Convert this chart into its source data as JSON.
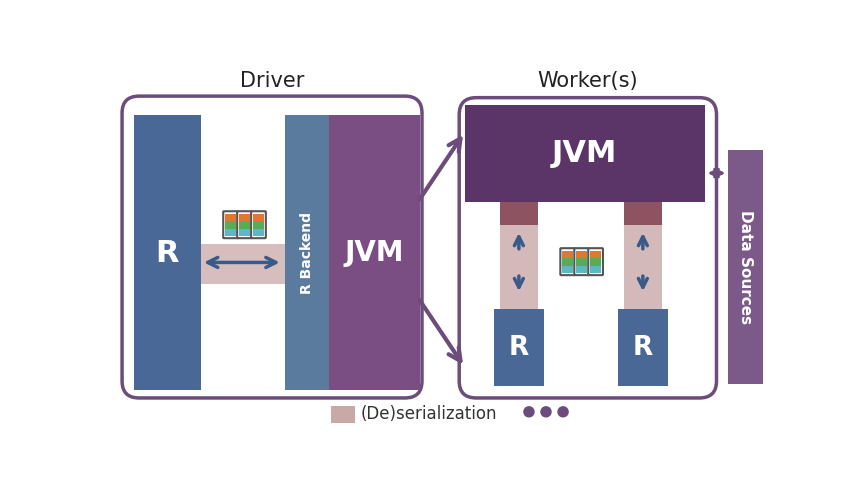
{
  "fig_width": 8.65,
  "fig_height": 4.93,
  "bg_color": "#ffffff",
  "purple_dark": "#6B4C7A",
  "blue_dark": "#4A6896",
  "r_backend_color": "#5B7B9E",
  "mauve": "#7A4E82",
  "deser_color": "#C9A8A8",
  "jvm_worker_color": "#5C3568",
  "dark_red": "#7A3545",
  "data_sources_color": "#7B5989",
  "driver_label": "Driver",
  "worker_label": "Worker(s)",
  "r_label": "R",
  "r_backend_label": "R Backend",
  "jvm_label": "JVM",
  "data_sources_label": "Data Sources",
  "deser_legend_label": "(De)serialization",
  "cyl_colors": [
    "#5BB8C8",
    "#5BAA5B",
    "#E07830"
  ]
}
